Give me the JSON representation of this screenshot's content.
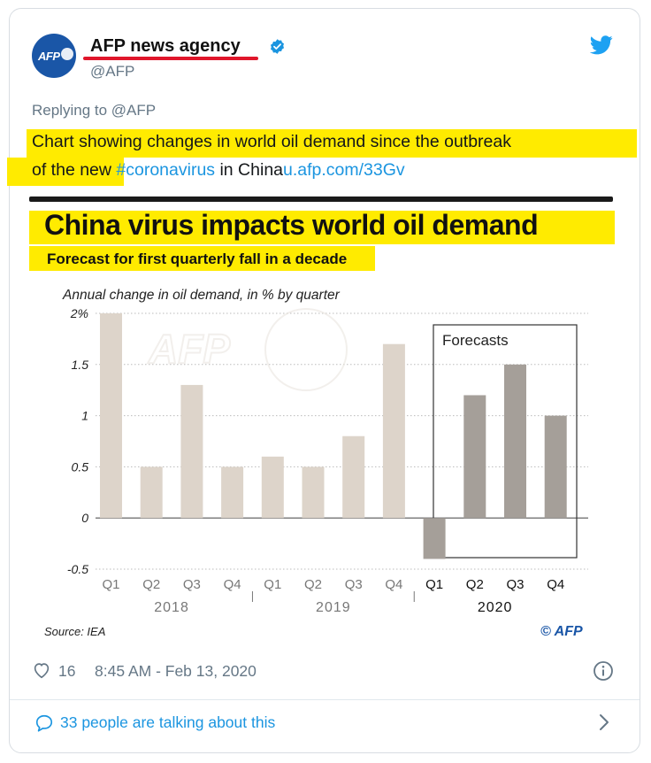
{
  "tweet": {
    "avatar_text": "AFP",
    "author_name": "AFP news agency",
    "handle": "@AFP",
    "replying_to": "Replying to @AFP",
    "text_line1": "Chart showing changes in world oil demand since the outbreak",
    "text_line2_pre": "of the new ",
    "hashtag": "#coronavirus",
    "text_line2_mid": " in China",
    "link": "u.afp.com/33Gv",
    "likes": "16",
    "timestamp": "8:45 AM - Feb 13, 2020",
    "talking": "33 people are talking about this"
  },
  "colors": {
    "highlight": "#ffeb00",
    "link": "#1b95e0",
    "bar_actual": "#ddd4ca",
    "bar_forecast": "#a59f99",
    "underline": "#e0162b"
  },
  "chart_data": {
    "type": "bar",
    "title": "China virus impacts world oil demand",
    "subtitle": "Forecast for first quarterly fall in a decade",
    "ylabel": "Annual change in oil demand, in % by quarter",
    "ylim": [
      -0.5,
      2
    ],
    "yticks": [
      "2%",
      "1.5",
      "1",
      "0.5",
      "0",
      "-0.5"
    ],
    "ytick_values": [
      2,
      1.5,
      1,
      0.5,
      0,
      -0.5
    ],
    "categories": [
      "Q1",
      "Q2",
      "Q3",
      "Q4",
      "Q1",
      "Q2",
      "Q3",
      "Q4",
      "Q1",
      "Q2",
      "Q3",
      "Q4"
    ],
    "values": [
      2.0,
      0.5,
      1.3,
      0.5,
      0.6,
      0.5,
      0.8,
      1.7,
      -0.4,
      1.2,
      1.5,
      1.0
    ],
    "forecast": [
      false,
      false,
      false,
      false,
      false,
      false,
      false,
      false,
      true,
      true,
      true,
      true
    ],
    "years": [
      "2018",
      "2019",
      "2020"
    ],
    "forecast_label": "Forecasts",
    "source": "Source: IEA",
    "credit": "© AFP",
    "watermark": "AFP"
  }
}
